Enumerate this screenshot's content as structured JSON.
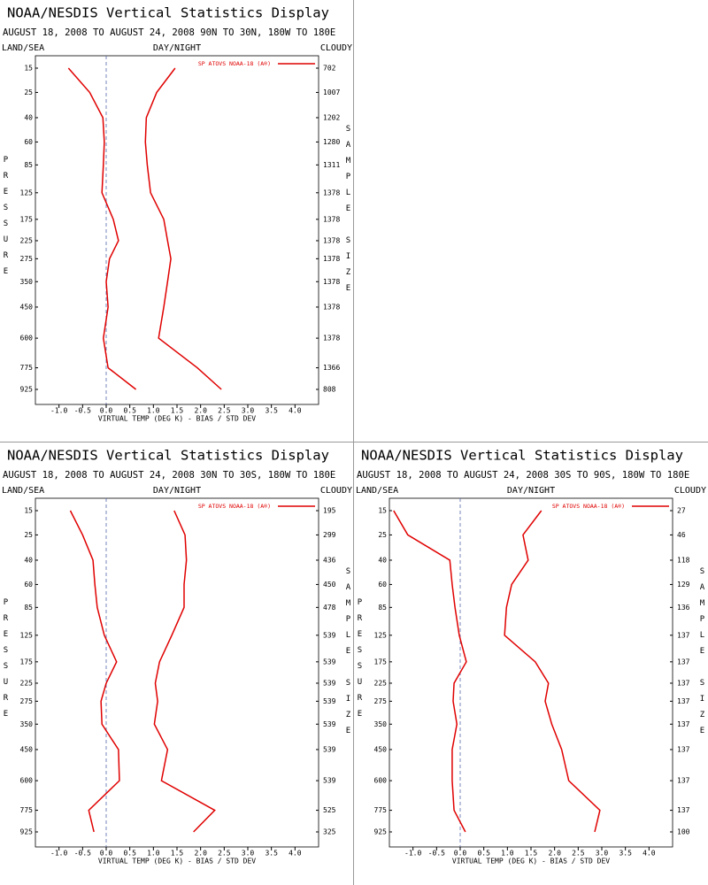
{
  "chart_data": [
    {
      "type": "line",
      "title": "NOAA/NESDIS Vertical Statistics Display",
      "subtitle": "AUGUST 18, 2008 TO AUGUST 24, 2008 90N TO 30N, 180W TO 180E",
      "top_left_label": "LAND/SEA",
      "top_center_label": "DAY/NIGHT",
      "top_right_label": "CLOUDY",
      "y_label": "PRESSURE",
      "y2_label": "SAMPLE SIZE",
      "x_label": "VIRTUAL TEMP (DEG K) - BIAS / STD DEV",
      "categories": [
        15,
        25,
        40,
        60,
        85,
        125,
        175,
        225,
        275,
        350,
        450,
        600,
        775,
        925
      ],
      "sample_sizes": [
        702,
        1007,
        1202,
        1280,
        1311,
        1378,
        1378,
        1378,
        1378,
        1378,
        1378,
        1378,
        1366,
        808
      ],
      "xlim": [
        -1.5,
        4.5
      ],
      "xticks": [
        {
          "value": -1,
          "label": "-1.0"
        },
        -0.5,
        {
          "value": 0,
          "label": "0.0"
        },
        0.5,
        {
          "value": 1,
          "label": "1.0"
        },
        1.5,
        {
          "value": 2,
          "label": "2.0"
        },
        2.5,
        {
          "value": 3,
          "label": "3.0"
        },
        3.5,
        {
          "value": 4,
          "label": "4.0"
        }
      ],
      "series": [
        {
          "name": "SP ATOVS NOAA-18 (A®)",
          "color": "#e00000",
          "values": [
            -0.8,
            -0.35,
            -0.07,
            -0.04,
            -0.06,
            -0.09,
            0.15,
            0.26,
            0.07,
            0.0,
            0.04,
            -0.06,
            0.04,
            0.63
          ]
        },
        {
          "color": "#e00000",
          "values": [
            1.46,
            1.07,
            0.85,
            0.83,
            0.87,
            0.94,
            1.22,
            1.3,
            1.37,
            1.3,
            1.22,
            1.11,
            1.93,
            2.44
          ]
        }
      ]
    },
    {
      "type": "line",
      "title": "NOAA/NESDIS Vertical Statistics Display",
      "subtitle": "AUGUST 18, 2008 TO AUGUST 24, 2008 30N TO 30S, 180W TO 180E",
      "top_left_label": "LAND/SEA",
      "top_center_label": "DAY/NIGHT",
      "top_right_label": "CLOUDY",
      "y_label": "PRESSURE",
      "y2_label": "SAMPLE SIZE",
      "x_label": "VIRTUAL TEMP (DEG K) - BIAS / STD DEV",
      "categories": [
        15,
        25,
        40,
        60,
        85,
        125,
        175,
        225,
        275,
        350,
        450,
        600,
        775,
        925
      ],
      "sample_sizes": [
        195,
        299,
        436,
        450,
        478,
        539,
        539,
        539,
        539,
        539,
        539,
        539,
        525,
        325
      ],
      "xlim": [
        -1.5,
        4.5
      ],
      "xticks": [
        {
          "value": -1,
          "label": "-1.0"
        },
        -0.5,
        {
          "value": 0,
          "label": "0.0"
        },
        0.5,
        {
          "value": 1,
          "label": "1.0"
        },
        1.5,
        {
          "value": 2,
          "label": "2.0"
        },
        2.5,
        {
          "value": 3,
          "label": "3.0"
        },
        3.5,
        {
          "value": 4,
          "label": "4.0"
        }
      ],
      "series": [
        {
          "name": "SP ATOVS NOAA-18 (A®)",
          "color": "#e00000",
          "values": [
            -0.76,
            -0.5,
            -0.28,
            -0.24,
            -0.19,
            -0.04,
            0.22,
            0.0,
            -0.11,
            -0.09,
            0.26,
            0.28,
            -0.37,
            -0.26
          ]
        },
        {
          "color": "#e00000",
          "values": [
            1.44,
            1.67,
            1.7,
            1.65,
            1.65,
            1.39,
            1.13,
            1.04,
            1.09,
            1.02,
            1.3,
            1.17,
            2.3,
            1.85
          ]
        }
      ]
    },
    {
      "type": "line",
      "title": "NOAA/NESDIS Vertical Statistics Display",
      "subtitle": "AUGUST 18, 2008 TO AUGUST 24, 2008 30S TO 90S, 180W TO 180E",
      "top_left_label": "LAND/SEA",
      "top_center_label": "DAY/NIGHT",
      "top_right_label": "CLOUDY",
      "y_label": "PRESSURE",
      "y2_label": "SAMPLE SIZE",
      "x_label": "VIRTUAL TEMP (DEG K) - BIAS / STD DEV",
      "categories": [
        15,
        25,
        40,
        60,
        85,
        125,
        175,
        225,
        275,
        350,
        450,
        600,
        775,
        925
      ],
      "sample_sizes": [
        27,
        46,
        118,
        129,
        136,
        137,
        137,
        137,
        137,
        137,
        137,
        137,
        137,
        100
      ],
      "xlim": [
        -1.5,
        4.5
      ],
      "xticks": [
        {
          "value": -1,
          "label": "-1.0"
        },
        -0.5,
        {
          "value": 0,
          "label": "0.0"
        },
        0.5,
        {
          "value": 1,
          "label": "1.0"
        },
        1.5,
        {
          "value": 2,
          "label": "2.0"
        },
        2.5,
        {
          "value": 3,
          "label": "3.0"
        },
        3.5,
        {
          "value": 4,
          "label": "4.0"
        }
      ],
      "series": [
        {
          "name": "SP ATOVS NOAA-18 (A®)",
          "color": "#e00000",
          "values": [
            -1.41,
            -1.11,
            -0.22,
            -0.17,
            -0.11,
            -0.02,
            0.13,
            -0.13,
            -0.15,
            -0.07,
            -0.17,
            -0.17,
            -0.13,
            0.11
          ]
        },
        {
          "color": "#e00000",
          "values": [
            1.72,
            1.33,
            1.44,
            1.09,
            0.98,
            0.94,
            1.59,
            1.87,
            1.8,
            1.94,
            2.15,
            2.3,
            2.96,
            2.85
          ]
        }
      ]
    }
  ]
}
